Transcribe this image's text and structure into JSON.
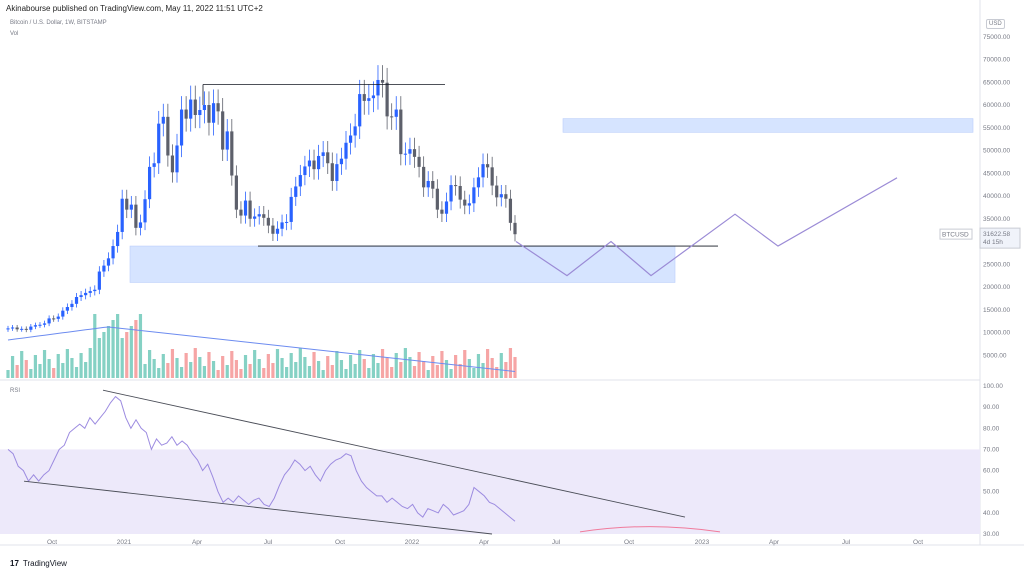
{
  "header": {
    "published": "Akinabourse published on TradingView.com, May 11, 2022 11:51 UTC+2",
    "symbol": "Bitcoin / U.S. Dollar, 1W, BITSTAMP",
    "vol": "Vol",
    "rsi": "RSI",
    "currency": "USD",
    "brand": "TradingView",
    "brand_logo": "17"
  },
  "price_badge": {
    "ticker": "BTCUSD",
    "price": "31622.58",
    "countdown": "4d 15h"
  },
  "colors": {
    "up": "#2962ff",
    "down": "#5d606b",
    "vol_up": "#66c5b5",
    "vol_down": "#f48f8f",
    "ma": "#6d8cf0",
    "zone": "#d6e4ff",
    "projection": "#9b8bd6",
    "rsi": "#9c8be0",
    "rsi_band": "#ede9fa"
  },
  "chart_data": {
    "type": "candlestick",
    "title": "Bitcoin / U.S. Dollar, 1W, BITSTAMP",
    "y_price_ticks": [
      "75000.00",
      "70000.00",
      "65000.00",
      "60000.00",
      "55000.00",
      "50000.00",
      "45000.00",
      "40000.00",
      "35000.00",
      "30000.00",
      "25000.00",
      "20000.00",
      "15000.00",
      "10000.00",
      "5000.00"
    ],
    "y_rsi_ticks": [
      "100.00",
      "90.00",
      "80.00",
      "70.00",
      "60.00",
      "50.00",
      "40.00",
      "30.00"
    ],
    "x_ticks": [
      "Oct",
      "2021",
      "Apr",
      "Jul",
      "Oct",
      "2022",
      "Apr",
      "Jul",
      "Oct",
      "2023",
      "Apr",
      "Jul",
      "Oct"
    ],
    "price_range": [
      0,
      80000
    ],
    "rsi_range": [
      30,
      100
    ],
    "candles_close": [
      10900,
      11100,
      10700,
      10800,
      10600,
      11300,
      11600,
      11700,
      12000,
      13100,
      13000,
      13500,
      14800,
      15600,
      16300,
      17800,
      18200,
      18700,
      19100,
      19400,
      23400,
      24700,
      26300,
      29000,
      32100,
      39400,
      37000,
      38100,
      33000,
      34200,
      39300,
      46400,
      47200,
      55900,
      57400,
      48900,
      45200,
      51100,
      59000,
      57000,
      61200,
      57800,
      58900,
      60000,
      56100,
      60400,
      58600,
      50200,
      54200,
      44500,
      37000,
      35700,
      39000,
      35000,
      35500,
      36000,
      35200,
      33500,
      31700,
      32800,
      34200,
      34300,
      39800,
      42100,
      44600,
      46500,
      47800,
      45900,
      48800,
      49600,
      47200,
      43300,
      47000,
      48200,
      51700,
      53300,
      55300,
      62400,
      60900,
      61500,
      62100,
      65500,
      64900,
      57500,
      57400,
      59000,
      49200,
      49300,
      50300,
      48600,
      46400,
      41900,
      43300,
      41600,
      37000,
      36100,
      38800,
      42400,
      42200,
      39200,
      37900,
      38400,
      41900,
      44100,
      47000,
      46300,
      42300,
      39700,
      40400,
      39400,
      34100,
      31600
    ],
    "ma_volume_desc": "moving average of volume",
    "rsi_values": [
      70,
      68,
      62,
      60,
      55,
      58,
      55,
      58,
      60,
      65,
      70,
      72,
      78,
      80,
      82,
      80,
      85,
      82,
      85,
      88,
      92,
      95,
      93,
      85,
      80,
      84,
      80,
      78,
      70,
      75,
      72,
      73,
      76,
      72,
      74,
      72,
      68,
      65,
      60,
      63,
      57,
      50,
      45,
      47,
      45,
      48,
      46,
      44,
      46,
      47,
      44,
      43,
      47,
      53,
      58,
      61,
      65,
      63,
      60,
      62,
      58,
      55,
      60,
      63,
      65,
      66,
      68,
      67,
      60,
      55,
      52,
      50,
      48,
      48,
      45,
      47,
      45,
      43,
      42,
      44,
      40,
      38,
      42,
      41,
      40,
      44,
      42,
      39,
      40,
      41,
      44,
      52,
      50,
      48,
      45,
      44,
      42,
      40,
      38,
      36
    ]
  }
}
